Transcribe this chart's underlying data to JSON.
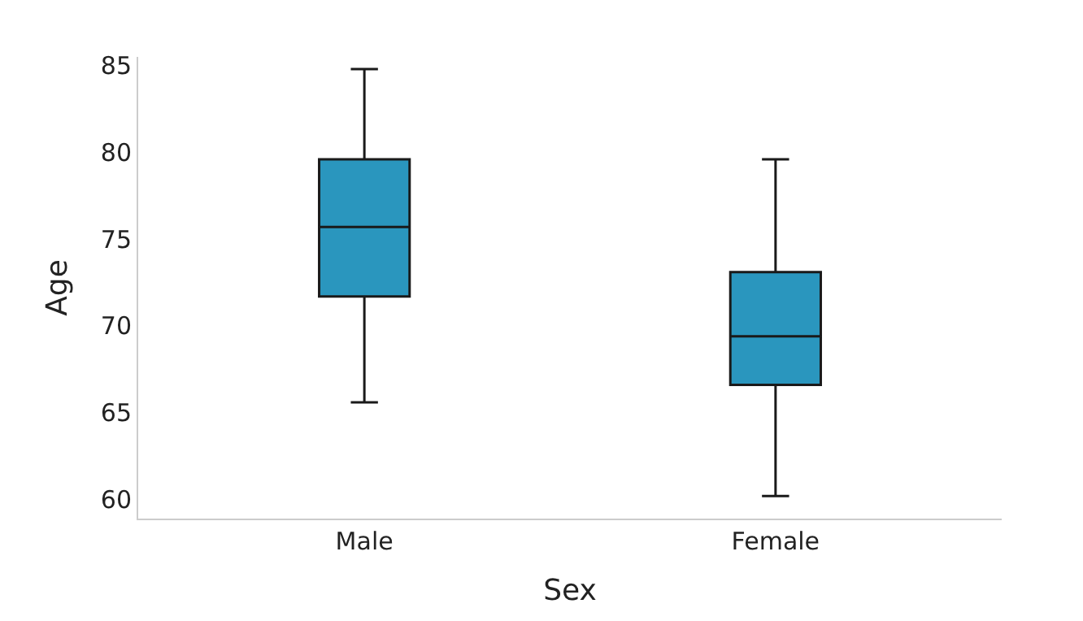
{
  "chart_data": {
    "type": "box",
    "xlabel": "Sex",
    "ylabel": "Age",
    "categories": [
      "Male",
      "Female"
    ],
    "boxes": [
      {
        "low": 65.6,
        "q1": 71.7,
        "median": 75.7,
        "q3": 79.6,
        "high": 84.8
      },
      {
        "low": 60.2,
        "q1": 66.6,
        "median": 69.4,
        "q3": 73.1,
        "high": 79.6
      }
    ],
    "color": "#2a96be",
    "ylim": [
      58.9,
      85.5
    ],
    "yticks": [
      60,
      65,
      70,
      75,
      80,
      85
    ]
  }
}
